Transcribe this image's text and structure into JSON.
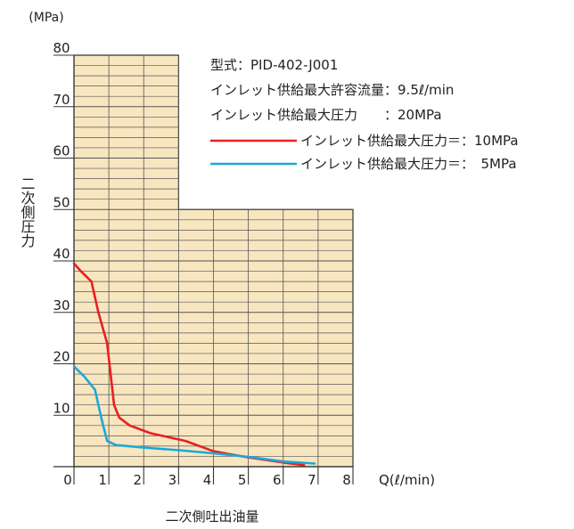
{
  "chart_data": {
    "type": "line",
    "y_unit": "(MPa)",
    "ylabel": "二次側圧力",
    "xlabel": "二次側吐出油量",
    "x_unit": "Q(ℓ/min)",
    "x_ticks": [
      0,
      1,
      2,
      3,
      4,
      5,
      6,
      7,
      8
    ],
    "y_ticks": [
      10,
      20,
      30,
      40,
      50,
      60,
      70,
      80
    ],
    "xlim": [
      0,
      8
    ],
    "ylim": [
      0,
      80
    ],
    "grid": "on",
    "grid_color": "#f8e6c0",
    "spec_lines": [
      "型式：PID-402-J001",
      "インレット供給最大許容流量：9.5ℓ/min",
      "インレット供給最大圧力　　：20MPa"
    ],
    "series": [
      {
        "name": "インレット供給最大圧力＝：10MPa",
        "color": "#e82020",
        "points": [
          [
            0,
            39.5
          ],
          [
            0.2,
            38
          ],
          [
            0.5,
            36
          ],
          [
            0.7,
            30
          ],
          [
            0.95,
            24
          ],
          [
            1.05,
            18
          ],
          [
            1.15,
            12
          ],
          [
            1.3,
            9.5
          ],
          [
            1.6,
            8
          ],
          [
            2.2,
            6.5
          ],
          [
            3.2,
            5
          ],
          [
            4,
            3
          ],
          [
            5,
            1.8
          ],
          [
            6,
            0.8
          ],
          [
            6.6,
            0.3
          ]
        ]
      },
      {
        "name": "インレット供給最大圧力＝：　5MPa",
        "color": "#1ca8d8",
        "points": [
          [
            0,
            19.5
          ],
          [
            0.3,
            17.5
          ],
          [
            0.6,
            15
          ],
          [
            0.8,
            9
          ],
          [
            0.95,
            5
          ],
          [
            1.2,
            4.2
          ],
          [
            2,
            3.7
          ],
          [
            3,
            3.2
          ],
          [
            4,
            2.6
          ],
          [
            5,
            1.9
          ],
          [
            6,
            1
          ],
          [
            6.9,
            0.6
          ]
        ]
      }
    ]
  }
}
